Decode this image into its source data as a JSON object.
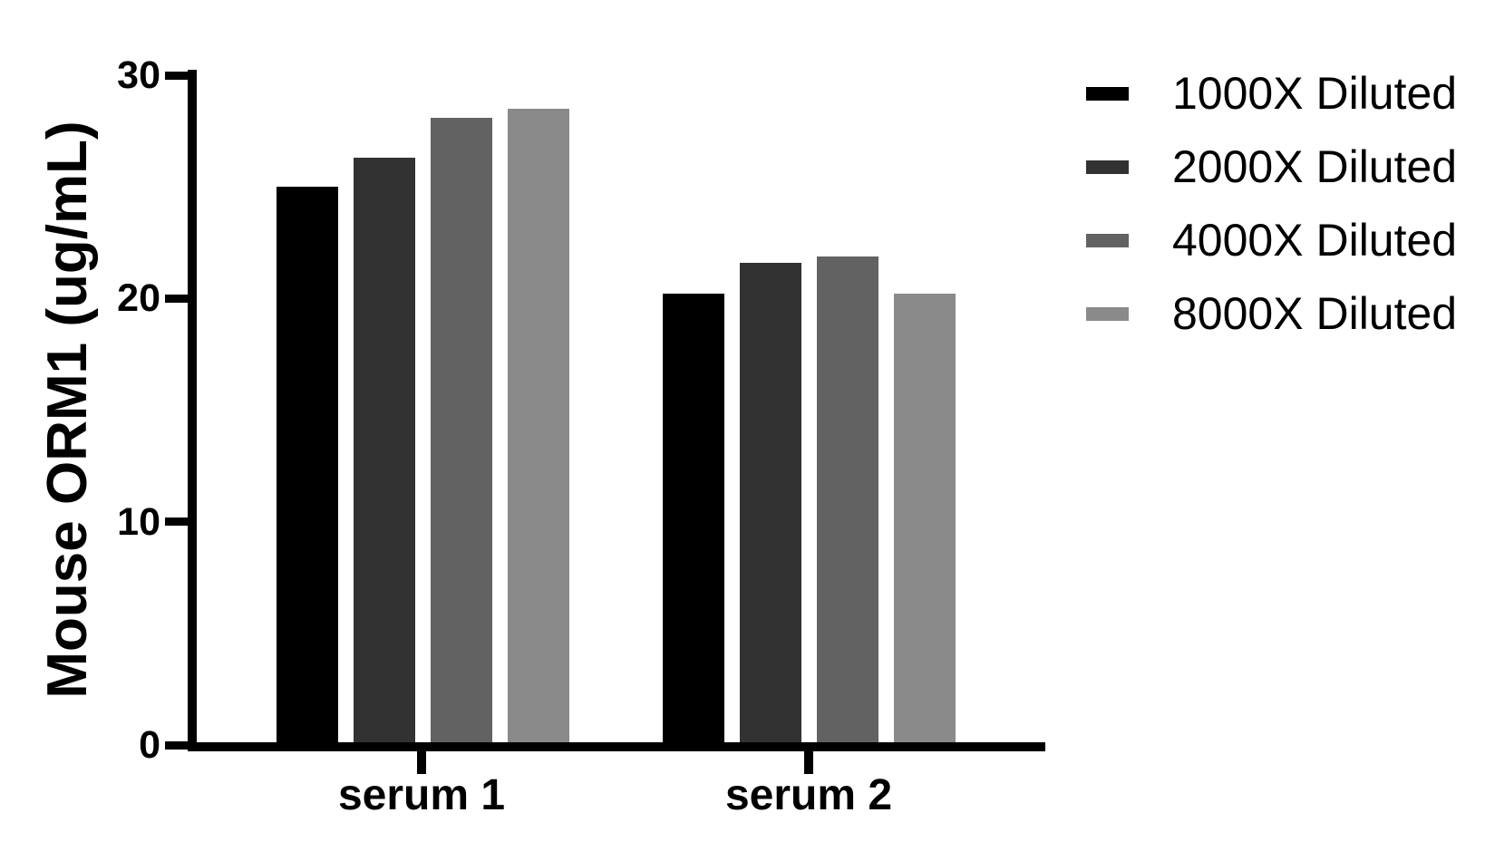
{
  "chart_data": {
    "type": "bar",
    "title": "",
    "xlabel": "",
    "ylabel": "Mouse ORM1 (ug/mL)",
    "ylim": [
      0,
      30
    ],
    "yticks": [
      0,
      10,
      20,
      30
    ],
    "grid": false,
    "legend_position": "top-right",
    "categories": [
      "serum 1",
      "serum 2"
    ],
    "series": [
      {
        "name": "1000X Diluted",
        "color": "#000000",
        "values": [
          25.0,
          20.2
        ]
      },
      {
        "name": "2000X Diluted",
        "color": "#323232",
        "values": [
          26.3,
          21.6
        ]
      },
      {
        "name": "4000X Diluted",
        "color": "#626262",
        "values": [
          28.1,
          21.9
        ]
      },
      {
        "name": "8000X Diluted",
        "color": "#8a8a8a",
        "values": [
          28.5,
          20.2
        ]
      }
    ],
    "axis_color": "#000000",
    "background_color": "#ffffff"
  }
}
